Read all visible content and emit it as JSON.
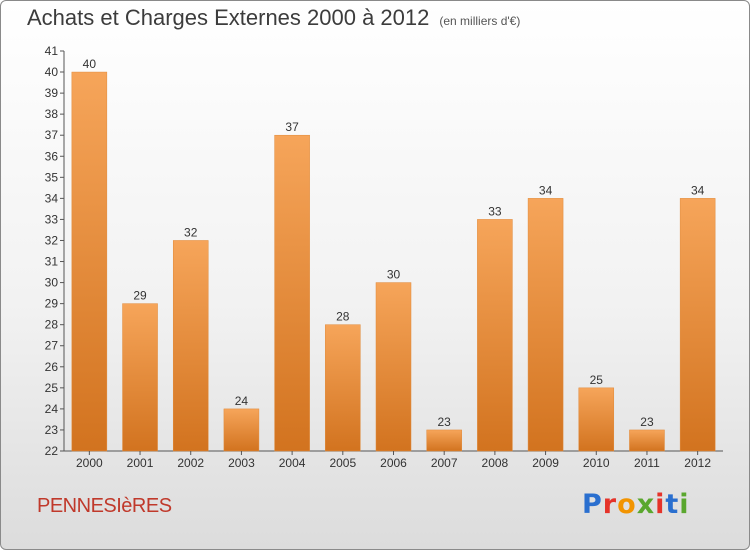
{
  "header": {
    "title": "Achats et Charges Externes 2000 à 2012",
    "subtitle": "(en milliers d'€)"
  },
  "footer": {
    "town": "PENNESIèRES",
    "logo": "Proxiti"
  },
  "colors": {
    "bar_top": "#f6a55a",
    "bar_bottom": "#d2731f",
    "logo_letters": [
      "#2a6fcf",
      "#e5332a",
      "#f29400",
      "#5aa72e",
      "#e5332a",
      "#2a6fcf",
      "#5aa72e"
    ]
  },
  "chart_data": {
    "type": "bar",
    "title": "Achats et Charges Externes 2000 à 2012",
    "subtitle": "(en milliers d'€)",
    "categories": [
      "2000",
      "2001",
      "2002",
      "2003",
      "2004",
      "2005",
      "2006",
      "2007",
      "2008",
      "2009",
      "2010",
      "2011",
      "2012"
    ],
    "values": [
      40,
      29,
      32,
      24,
      37,
      28,
      30,
      23,
      33,
      34,
      25,
      23,
      34
    ],
    "ylim": [
      22,
      41
    ],
    "yticks": [
      22,
      23,
      24,
      25,
      26,
      27,
      28,
      29,
      30,
      31,
      32,
      33,
      34,
      35,
      36,
      37,
      38,
      39,
      40,
      41
    ],
    "grid": false,
    "data_labels": true
  }
}
